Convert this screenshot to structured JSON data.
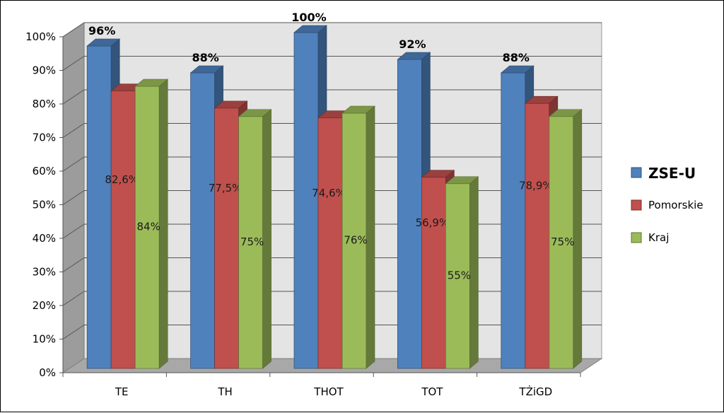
{
  "chart_data": {
    "type": "bar",
    "categories": [
      "TE",
      "TH",
      "THOT",
      "TOT",
      "TŻiGD"
    ],
    "series": [
      {
        "name": "ZSE-U",
        "values": [
          96,
          88,
          100,
          92,
          88
        ],
        "labels": [
          "96%",
          "88%",
          "100%",
          "92%",
          "88%"
        ],
        "color": "#4f81bd"
      },
      {
        "name": "Pomorskie",
        "values": [
          82.6,
          77.5,
          74.6,
          56.9,
          78.9
        ],
        "labels": [
          "82,6%",
          "77,5%",
          "74,6%",
          "56,9%",
          "78,9%"
        ],
        "color": "#c0504d"
      },
      {
        "name": "Kraj",
        "values": [
          84,
          75,
          76,
          55,
          75
        ],
        "labels": [
          "84%",
          "75%",
          "76%",
          "55%",
          "75%"
        ],
        "color": "#9bbb59"
      }
    ],
    "yticks": [
      "0%",
      "10%",
      "20%",
      "30%",
      "40%",
      "50%",
      "60%",
      "70%",
      "80%",
      "90%",
      "100%"
    ],
    "ylim": [
      0,
      100
    ],
    "grid": true,
    "legend_position": "right",
    "style": "3d-clustered-column"
  }
}
